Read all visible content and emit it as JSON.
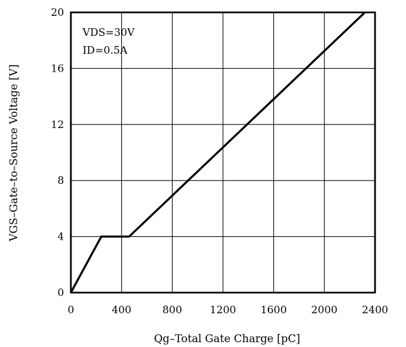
{
  "chart_data": {
    "type": "line",
    "xlabel": "Qg–Total Gate Charge [pC]",
    "ylabel": "VGS–Gate–to–Source Voltage [V]",
    "xlim": [
      0,
      2400
    ],
    "ylim": [
      0,
      20
    ],
    "xticks": [
      0,
      400,
      800,
      1200,
      1600,
      2000,
      2400
    ],
    "yticks": [
      0,
      4,
      8,
      12,
      16,
      20
    ],
    "grid": true,
    "annotations": [
      "VDS=30V",
      "ID=0.5A"
    ],
    "series": [
      {
        "x": [
          0,
          240,
          460,
          2320
        ],
        "y": [
          0,
          4,
          4,
          20
        ]
      }
    ]
  }
}
